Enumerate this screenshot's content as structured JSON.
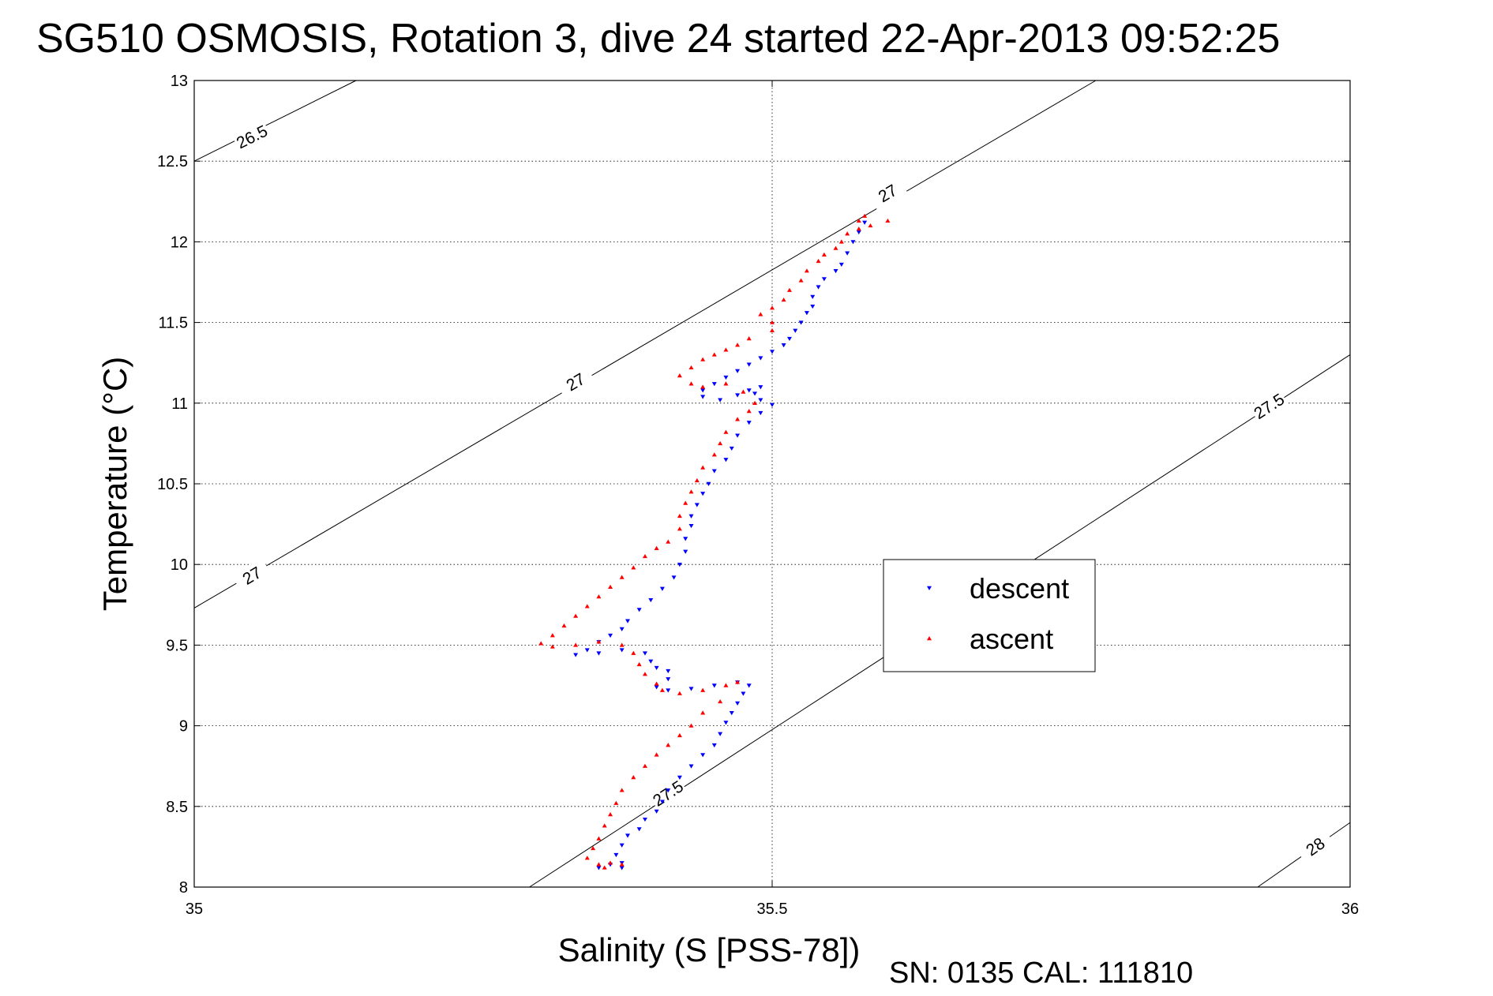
{
  "chart_data": {
    "type": "scatter",
    "title": "SG510 OSMOSIS, Rotation 3, dive 24 started 22-Apr-2013 09:52:25",
    "xlabel": "Salinity (S [PSS-78])",
    "ylabel": "Temperature (°C)",
    "xlim": [
      35,
      36
    ],
    "ylim": [
      8,
      13
    ],
    "x_ticks": [
      "35",
      "35.5",
      "36"
    ],
    "y_ticks": [
      "8",
      "8.5",
      "9",
      "9.5",
      "10",
      "10.5",
      "11",
      "11.5",
      "12",
      "12.5",
      "13"
    ],
    "grid": true,
    "legend_position": "right",
    "footer": "SN: 0135  CAL: 111810",
    "density_contours": [
      {
        "label": "26.5",
        "points": [
          [
            35,
            12.5
          ],
          [
            35.14,
            13
          ]
        ],
        "label_at": [
          35.05,
          12.65
        ]
      },
      {
        "label": "27",
        "points": [
          [
            35,
            9.73
          ],
          [
            35.78,
            13
          ]
        ],
        "labels_at": [
          [
            35.05,
            9.93
          ],
          [
            35.33,
            11.13
          ],
          [
            35.6,
            12.3
          ]
        ]
      },
      {
        "label": "27.5",
        "points": [
          [
            35.29,
            8
          ],
          [
            36,
            11.3
          ]
        ],
        "labels_at": [
          [
            35.41,
            8.58
          ],
          [
            35.93,
            10.98
          ]
        ]
      },
      {
        "label": "28",
        "points": [
          [
            35.92,
            8
          ],
          [
            36,
            8.4
          ]
        ],
        "label_at": [
          35.97,
          8.25
        ]
      }
    ],
    "series": [
      {
        "name": "descent",
        "color": "#0000ff",
        "marker": "triangle-down",
        "points": [
          [
            35.58,
            12.12
          ],
          [
            35.575,
            12.06
          ],
          [
            35.57,
            12.0
          ],
          [
            35.565,
            11.93
          ],
          [
            35.56,
            11.86
          ],
          [
            35.555,
            11.82
          ],
          [
            35.545,
            11.77
          ],
          [
            35.54,
            11.72
          ],
          [
            35.535,
            11.66
          ],
          [
            35.535,
            11.6
          ],
          [
            35.53,
            11.56
          ],
          [
            35.525,
            11.5
          ],
          [
            35.52,
            11.45
          ],
          [
            35.515,
            11.4
          ],
          [
            35.51,
            11.36
          ],
          [
            35.5,
            11.32
          ],
          [
            35.49,
            11.28
          ],
          [
            35.48,
            11.24
          ],
          [
            35.47,
            11.2
          ],
          [
            35.46,
            11.16
          ],
          [
            35.45,
            11.12
          ],
          [
            35.44,
            11.08
          ],
          [
            35.44,
            11.04
          ],
          [
            35.455,
            11.02
          ],
          [
            35.47,
            11.05
          ],
          [
            35.48,
            11.08
          ],
          [
            35.49,
            11.1
          ],
          [
            35.485,
            11.06
          ],
          [
            35.49,
            11.02
          ],
          [
            35.5,
            10.99
          ],
          [
            35.49,
            10.94
          ],
          [
            35.48,
            10.88
          ],
          [
            35.47,
            10.8
          ],
          [
            35.465,
            10.72
          ],
          [
            35.46,
            10.65
          ],
          [
            35.45,
            10.58
          ],
          [
            35.445,
            10.5
          ],
          [
            35.44,
            10.44
          ],
          [
            35.435,
            10.37
          ],
          [
            35.43,
            10.3
          ],
          [
            35.43,
            10.24
          ],
          [
            35.425,
            10.16
          ],
          [
            35.425,
            10.08
          ],
          [
            35.42,
            10.0
          ],
          [
            35.415,
            9.92
          ],
          [
            35.405,
            9.85
          ],
          [
            35.395,
            9.78
          ],
          [
            35.385,
            9.72
          ],
          [
            35.375,
            9.65
          ],
          [
            35.37,
            9.6
          ],
          [
            35.36,
            9.56
          ],
          [
            35.35,
            9.52
          ],
          [
            35.34,
            9.47
          ],
          [
            35.33,
            9.44
          ],
          [
            35.35,
            9.45
          ],
          [
            35.37,
            9.47
          ],
          [
            35.39,
            9.45
          ],
          [
            35.395,
            9.4
          ],
          [
            35.4,
            9.36
          ],
          [
            35.41,
            9.34
          ],
          [
            35.41,
            9.29
          ],
          [
            35.4,
            9.24
          ],
          [
            35.41,
            9.22
          ],
          [
            35.43,
            9.23
          ],
          [
            35.45,
            9.25
          ],
          [
            35.47,
            9.27
          ],
          [
            35.48,
            9.25
          ],
          [
            35.475,
            9.2
          ],
          [
            35.47,
            9.14
          ],
          [
            35.465,
            9.08
          ],
          [
            35.46,
            9.02
          ],
          [
            35.455,
            8.95
          ],
          [
            35.45,
            8.88
          ],
          [
            35.44,
            8.82
          ],
          [
            35.43,
            8.75
          ],
          [
            35.42,
            8.68
          ],
          [
            35.41,
            8.6
          ],
          [
            35.405,
            8.53
          ],
          [
            35.4,
            8.47
          ],
          [
            35.39,
            8.42
          ],
          [
            35.385,
            8.36
          ],
          [
            35.375,
            8.32
          ],
          [
            35.37,
            8.26
          ],
          [
            35.365,
            8.2
          ],
          [
            35.37,
            8.15
          ],
          [
            35.37,
            8.12
          ],
          [
            35.36,
            8.14
          ],
          [
            35.35,
            8.12
          ]
        ]
      },
      {
        "name": "ascent",
        "color": "#ff0000",
        "marker": "triangle-up",
        "points": [
          [
            35.58,
            12.16
          ],
          [
            35.575,
            12.13
          ],
          [
            35.585,
            12.1
          ],
          [
            35.575,
            12.08
          ],
          [
            35.565,
            12.05
          ],
          [
            35.56,
            12.0
          ],
          [
            35.555,
            11.96
          ],
          [
            35.545,
            11.92
          ],
          [
            35.54,
            11.88
          ],
          [
            35.53,
            11.82
          ],
          [
            35.525,
            11.76
          ],
          [
            35.515,
            11.7
          ],
          [
            35.51,
            11.64
          ],
          [
            35.5,
            11.59
          ],
          [
            35.49,
            11.55
          ],
          [
            35.5,
            11.5
          ],
          [
            35.5,
            11.45
          ],
          [
            35.48,
            11.4
          ],
          [
            35.47,
            11.36
          ],
          [
            35.46,
            11.33
          ],
          [
            35.45,
            11.3
          ],
          [
            35.44,
            11.27
          ],
          [
            35.43,
            11.22
          ],
          [
            35.42,
            11.17
          ],
          [
            35.43,
            11.12
          ],
          [
            35.44,
            11.1
          ],
          [
            35.46,
            11.12
          ],
          [
            35.475,
            11.07
          ],
          [
            35.485,
            11.0
          ],
          [
            35.48,
            10.95
          ],
          [
            35.47,
            10.9
          ],
          [
            35.46,
            10.82
          ],
          [
            35.455,
            10.75
          ],
          [
            35.45,
            10.68
          ],
          [
            35.44,
            10.6
          ],
          [
            35.435,
            10.52
          ],
          [
            35.43,
            10.45
          ],
          [
            35.425,
            10.38
          ],
          [
            35.42,
            10.3
          ],
          [
            35.42,
            10.22
          ],
          [
            35.41,
            10.14
          ],
          [
            35.4,
            10.1
          ],
          [
            35.39,
            10.05
          ],
          [
            35.38,
            9.98
          ],
          [
            35.37,
            9.92
          ],
          [
            35.36,
            9.86
          ],
          [
            35.35,
            9.8
          ],
          [
            35.34,
            9.74
          ],
          [
            35.33,
            9.68
          ],
          [
            35.32,
            9.62
          ],
          [
            35.31,
            9.56
          ],
          [
            35.3,
            9.51
          ],
          [
            35.31,
            9.49
          ],
          [
            35.33,
            9.5
          ],
          [
            35.35,
            9.52
          ],
          [
            35.37,
            9.5
          ],
          [
            35.38,
            9.45
          ],
          [
            35.385,
            9.38
          ],
          [
            35.39,
            9.32
          ],
          [
            35.4,
            9.26
          ],
          [
            35.405,
            9.22
          ],
          [
            35.42,
            9.2
          ],
          [
            35.44,
            9.22
          ],
          [
            35.46,
            9.25
          ],
          [
            35.47,
            9.27
          ],
          [
            35.455,
            9.15
          ],
          [
            35.44,
            9.08
          ],
          [
            35.43,
            9.0
          ],
          [
            35.42,
            8.94
          ],
          [
            35.41,
            8.88
          ],
          [
            35.4,
            8.82
          ],
          [
            35.39,
            8.75
          ],
          [
            35.38,
            8.68
          ],
          [
            35.37,
            8.6
          ],
          [
            35.365,
            8.52
          ],
          [
            35.36,
            8.45
          ],
          [
            35.355,
            8.38
          ],
          [
            35.35,
            8.3
          ],
          [
            35.345,
            8.24
          ],
          [
            35.34,
            8.18
          ],
          [
            35.35,
            8.14
          ],
          [
            35.36,
            8.15
          ],
          [
            35.37,
            8.14
          ],
          [
            35.355,
            8.12
          ],
          [
            35.6,
            12.13
          ]
        ]
      }
    ]
  }
}
